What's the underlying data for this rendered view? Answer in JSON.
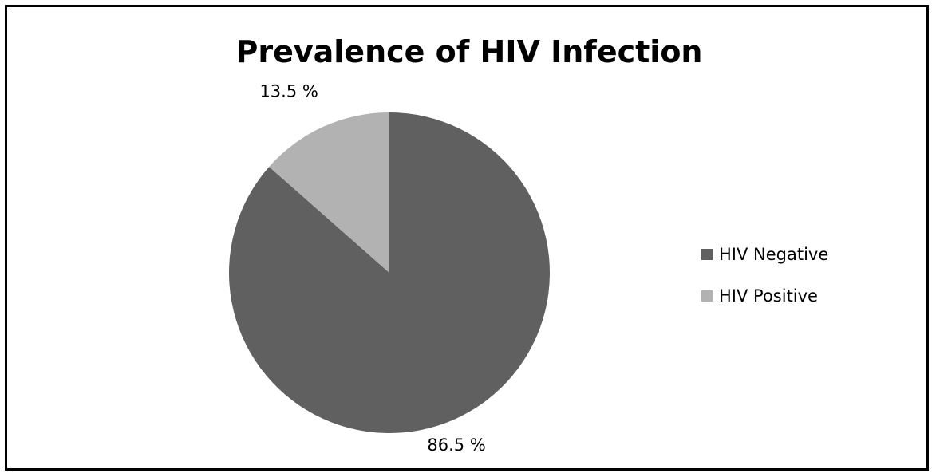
{
  "chart_data": {
    "type": "pie",
    "title": "Prevalence of HIV Infection",
    "categories": [
      "HIV Negative",
      "HIV Positive"
    ],
    "values": [
      86.5,
      13.5
    ],
    "data_labels": [
      "86.5 %",
      "13.5 %"
    ],
    "colors": [
      "#606060",
      "#b2b2b2"
    ],
    "legend_position": "right",
    "start_angle": "12 o'clock",
    "direction": "clockwise"
  }
}
